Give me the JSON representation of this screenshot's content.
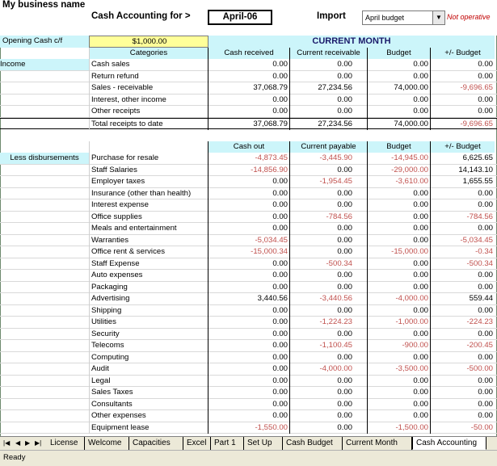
{
  "header": {
    "business_name": "My business name",
    "cash_accounting_for": "Cash Accounting for >",
    "month": "April-06",
    "import_label": "Import",
    "import_select": "April budget",
    "not_operative": "Not operative"
  },
  "opening": {
    "label": "Opening Cash c/f",
    "value": "$1,000.00",
    "section_title": "CURRENT MONTH"
  },
  "income": {
    "label": "Income",
    "headers": [
      "Categories",
      "Cash received",
      "Current receivable",
      "Budget",
      "+/- Budget"
    ],
    "rows": [
      [
        "Cash sales",
        "0.00",
        "0.00",
        "0.00",
        "0.00"
      ],
      [
        "Return refund",
        "0.00",
        "0.00",
        "0.00",
        "0.00"
      ],
      [
        "Sales - receivable",
        "37,068.79",
        "27,234.56",
        "74,000.00",
        "-9,696.65"
      ],
      [
        "Interest, other income",
        "0.00",
        "0.00",
        "0.00",
        "0.00"
      ],
      [
        "Other receipts",
        "0.00",
        "0.00",
        "0.00",
        "0.00"
      ]
    ],
    "total": [
      "Total receipts to date",
      "37,068.79",
      "27,234.56",
      "74,000.00",
      "-9,696.65"
    ]
  },
  "disbursements": {
    "label": "Less disbursements",
    "headers": [
      "Cash out",
      "Current payable",
      "Budget",
      "+/- Budget"
    ],
    "rows": [
      [
        "Purchase for resale",
        "-4,873.45",
        "-3,445.90",
        "-14,945.00",
        "6,625.65"
      ],
      [
        "Staff Salaries",
        "-14,856.90",
        "0.00",
        "-29,000.00",
        "14,143.10"
      ],
      [
        "Employer taxes",
        "0.00",
        "-1,954.45",
        "-3,610.00",
        "1,655.55"
      ],
      [
        "Insurance (other than health)",
        "0.00",
        "0.00",
        "0.00",
        "0.00"
      ],
      [
        "Interest expense",
        "0.00",
        "0.00",
        "0.00",
        "0.00"
      ],
      [
        "Office supplies",
        "0.00",
        "-784.56",
        "0.00",
        "-784.56"
      ],
      [
        "Meals and entertainment",
        "0.00",
        "0.00",
        "0.00",
        "0.00"
      ],
      [
        "Warranties",
        "-5,034.45",
        "0.00",
        "0.00",
        "-5,034.45"
      ],
      [
        "Office rent & services",
        "-15,000.34",
        "0.00",
        "-15,000.00",
        "-0.34"
      ],
      [
        "Staff Expense",
        "0.00",
        "-500.34",
        "0.00",
        "-500.34"
      ],
      [
        "Auto expenses",
        "0.00",
        "0.00",
        "0.00",
        "0.00"
      ],
      [
        "Packaging",
        "0.00",
        "0.00",
        "0.00",
        "0.00"
      ],
      [
        "Advertising",
        "3,440.56",
        "-3,440.56",
        "-4,000.00",
        "559.44"
      ],
      [
        "Shipping",
        "0.00",
        "0.00",
        "0.00",
        "0.00"
      ],
      [
        "Utilities",
        "0.00",
        "-1,224.23",
        "-1,000.00",
        "-224.23"
      ],
      [
        "Security",
        "0.00",
        "0.00",
        "0.00",
        "0.00"
      ],
      [
        "Telecoms",
        "0.00",
        "-1,100.45",
        "-900.00",
        "-200.45"
      ],
      [
        "Computing",
        "0.00",
        "0.00",
        "0.00",
        "0.00"
      ],
      [
        "Audit",
        "0.00",
        "-4,000.00",
        "-3,500.00",
        "-500.00"
      ],
      [
        "Legal",
        "0.00",
        "0.00",
        "0.00",
        "0.00"
      ],
      [
        "Sales Taxes",
        "0.00",
        "0.00",
        "0.00",
        "0.00"
      ],
      [
        "Consultants",
        "0.00",
        "0.00",
        "0.00",
        "0.00"
      ],
      [
        "Other expenses",
        "0.00",
        "0.00",
        "0.00",
        "0.00"
      ],
      [
        "Equipment lease",
        "-1,550.00",
        "0.00",
        "-1,500.00",
        "-50.00"
      ]
    ]
  },
  "tabs": {
    "nav_first": "|◀",
    "nav_prev": "◀",
    "nav_next": "▶",
    "nav_last": "▶|",
    "items": [
      "License",
      "Welcome",
      "Capacities",
      "Excel",
      "Part 1",
      "Set Up",
      "Cash Budget",
      "Current Month",
      "Cash Accounting"
    ],
    "active": "Cash Accounting"
  },
  "status": {
    "text": "Ready"
  }
}
